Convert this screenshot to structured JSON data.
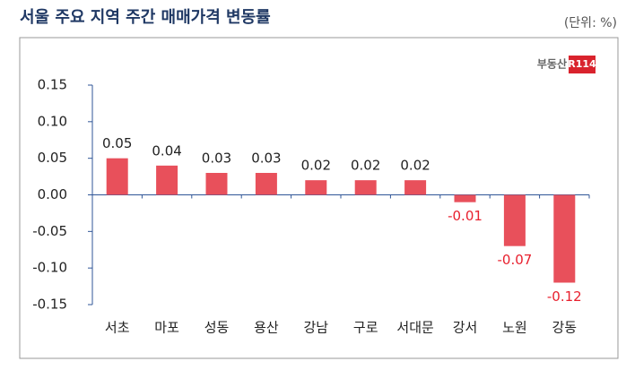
{
  "chart_data": {
    "type": "bar",
    "title": "서울 주요 지역 주간 매매가격 변동률",
    "unit": "(단위: %)",
    "logo": {
      "text": "부동산",
      "badge": "R114"
    },
    "categories": [
      "서초",
      "마포",
      "성동",
      "용산",
      "강남",
      "구로",
      "서대문",
      "강서",
      "노원",
      "강동"
    ],
    "values": [
      0.05,
      0.04,
      0.03,
      0.03,
      0.02,
      0.02,
      0.02,
      -0.01,
      -0.07,
      -0.12
    ],
    "color": "#e8505b",
    "negative_label_color": "#e8202e",
    "ylim": [
      -0.15,
      0.15
    ],
    "yticks": [
      0.15,
      {
        "value": 0.1,
        "label": "0.10"
      },
      0.05,
      {
        "value": 0,
        "label": "0.00"
      },
      -0.05,
      {
        "value": -0.1,
        "label": "-0.10"
      },
      -0.15
    ]
  }
}
